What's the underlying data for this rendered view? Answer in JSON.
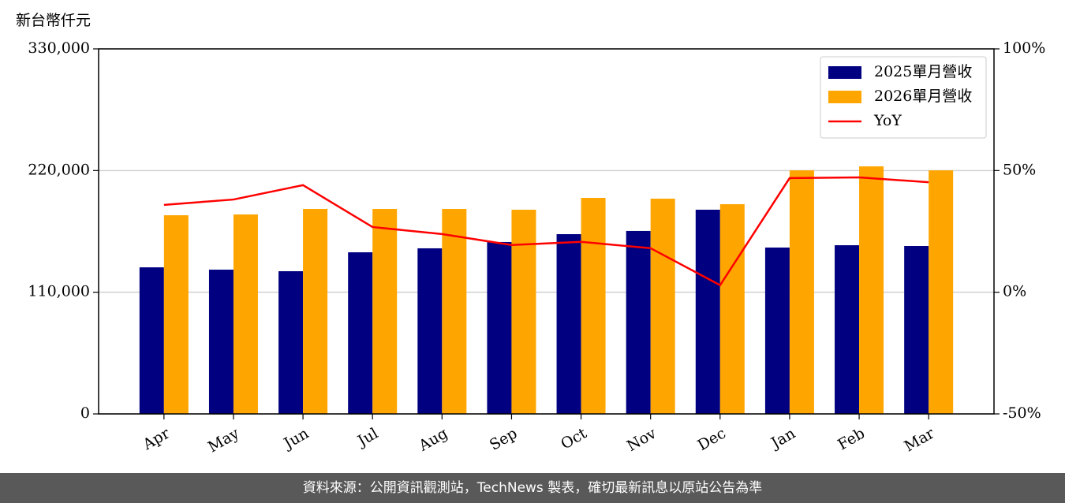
{
  "chart_data": {
    "type": "bar-line",
    "y_label": "新台幣仟元",
    "categories": [
      "Apr",
      "May",
      "Jun",
      "Jul",
      "Aug",
      "Sep",
      "Oct",
      "Nov",
      "Dec",
      "Jan",
      "Feb",
      "Mar"
    ],
    "series": [
      {
        "name": "2025單月營收",
        "color": "#000080",
        "type": "bar",
        "values": [
          132500,
          130400,
          129000,
          146100,
          149700,
          155400,
          162500,
          165400,
          184600,
          150400,
          152500,
          151800
        ]
      },
      {
        "name": "2026單月營收",
        "color": "#ffa500",
        "type": "bar",
        "values": [
          179600,
          180300,
          185300,
          185300,
          185300,
          184600,
          195300,
          194600,
          189600,
          220200,
          223800,
          220200
        ]
      },
      {
        "name": "YoY",
        "color": "#ff0000",
        "type": "line",
        "axis": "y2",
        "values": [
          35.9,
          38.1,
          44.0,
          26.8,
          23.9,
          19.4,
          20.7,
          18.1,
          2.9,
          46.9,
          47.2,
          45.2
        ]
      }
    ],
    "ylim": [
      0,
      330000
    ],
    "yticks": [
      0,
      {
        "value": 110000,
        "label": "110,000"
      },
      {
        "value": 220000,
        "label": "220,000"
      },
      {
        "value": 330000,
        "label": "330,000"
      }
    ],
    "y2lim": [
      -50,
      100
    ],
    "y2ticks": [
      {
        "value": -50,
        "label": "-50%"
      },
      {
        "value": 0,
        "label": "0%"
      },
      {
        "value": 50,
        "label": "50%"
      },
      {
        "value": 100,
        "label": "100%"
      }
    ],
    "grid": true,
    "legend": "upper right",
    "source": "資料來源：公開資訊觀測站，TechNews 製表，確切最新訊息以原站公告為準"
  }
}
